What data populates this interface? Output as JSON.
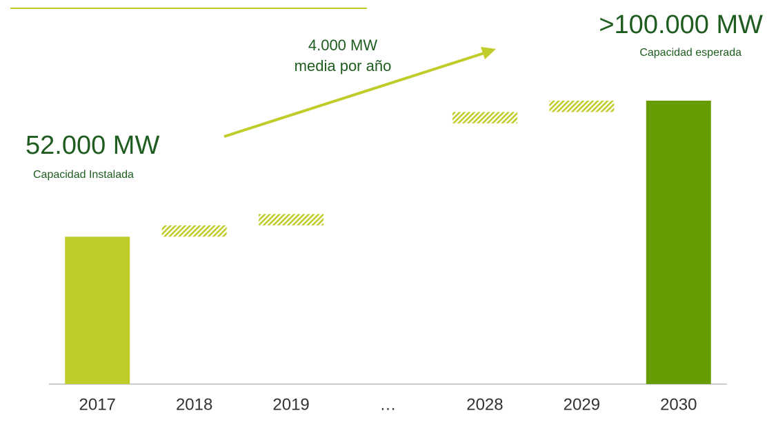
{
  "chart_data": {
    "type": "range_bar",
    "categories": [
      "2017",
      "2018",
      "2019",
      "…",
      "2028",
      "2029",
      "2030"
    ],
    "values": [
      [
        0,
        52000
      ],
      [
        52000,
        56000
      ],
      [
        56000,
        60000
      ],
      null,
      [
        92000,
        96000
      ],
      [
        96000,
        100000
      ],
      [
        0,
        100000
      ]
    ],
    "styles": [
      "solid",
      "hatched",
      "hatched",
      null,
      "hatched",
      "hatched",
      "solid"
    ],
    "colors": [
      "#c0cc2a",
      "#c0cc2a",
      "#c0cc2a",
      null,
      "#c0cc2a",
      "#c0cc2a",
      "#669c00"
    ],
    "ylim": [
      0,
      100000
    ],
    "annotations": [
      {
        "text": "52.000 MW"
      },
      {
        "text": "Capacidad Instalada"
      },
      {
        "text": ">100.000 MW"
      },
      {
        "text": "Capacidad esperada"
      },
      {
        "text": "4.000 MW"
      },
      {
        "text": "media por año"
      }
    ]
  }
}
